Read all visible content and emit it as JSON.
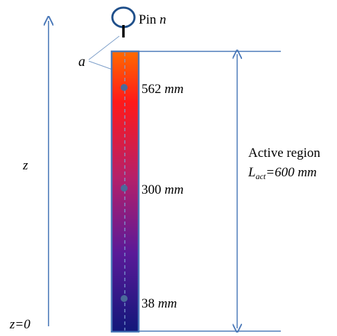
{
  "pin_label": {
    "prefix": "Pin ",
    "var": "n"
  },
  "gap_label": "a",
  "z_axis": {
    "label": "z",
    "origin_label": "z=0"
  },
  "positions": [
    {
      "value": "562",
      "unit": "mm"
    },
    {
      "value": "300",
      "unit": "mm"
    },
    {
      "value": "38",
      "unit": "mm"
    }
  ],
  "active_region": {
    "title": "Active region",
    "length_symbol": "L",
    "length_subscript": "act",
    "length_value": "=600",
    "length_unit": "mm"
  },
  "colors": {
    "rod_top": "#ff6a00",
    "rod_mid_upper": "#ff1a1a",
    "rod_mid": "#b5206a",
    "rod_lower": "#5a1a98",
    "rod_bottom": "#12187a",
    "frame": "#4a78b8",
    "sensor_dot": "#4a6a9a",
    "pin_head": "#1f4f8a"
  }
}
